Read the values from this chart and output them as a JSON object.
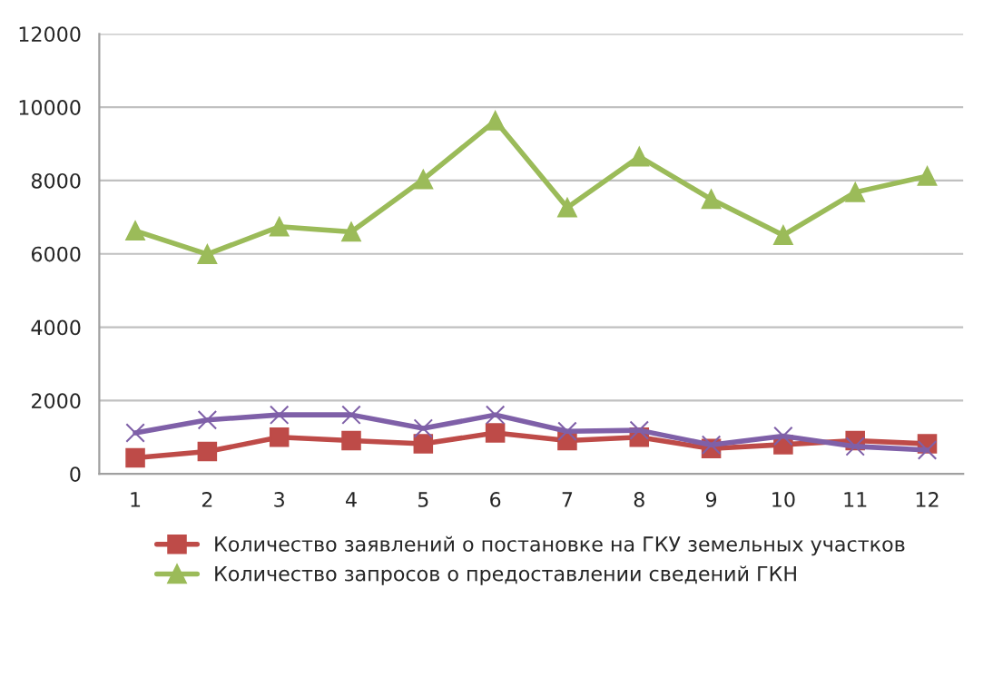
{
  "chart_data": {
    "type": "line",
    "categories": [
      "1",
      "2",
      "3",
      "4",
      "5",
      "6",
      "7",
      "8",
      "9",
      "10",
      "11",
      "12"
    ],
    "series": [
      {
        "name": "Количество заявлений о постановке на ГКУ земельных участков",
        "color": "#be4b48",
        "marker": "square",
        "values": [
          440,
          610,
          1000,
          910,
          820,
          1120,
          910,
          1000,
          690,
          800,
          910,
          820
        ]
      },
      {
        "name": "Количество запросов о предоставлении сведений ГКН",
        "color": "#9bbb59",
        "marker": "triangle",
        "values": [
          6630,
          5990,
          6740,
          6600,
          8030,
          9630,
          7260,
          8650,
          7490,
          6510,
          7680,
          8120
        ]
      },
      {
        "color": "#7f60a8",
        "marker": "cross",
        "values": [
          1120,
          1470,
          1610,
          1610,
          1240,
          1610,
          1160,
          1190,
          790,
          1030,
          750,
          650
        ]
      }
    ],
    "ylim": [
      0,
      12000
    ],
    "yticks": [
      0,
      2000,
      4000,
      6000,
      8000,
      10000,
      12000
    ],
    "grid": "y",
    "legend": "bottom",
    "line_style": "solid"
  }
}
